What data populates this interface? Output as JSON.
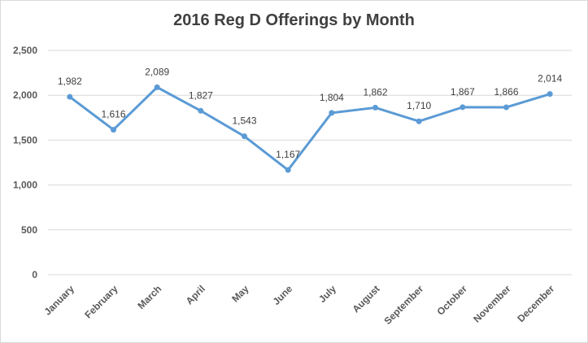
{
  "chart_data": {
    "type": "line",
    "title": "2016 Reg D Offerings by Month",
    "xlabel": "",
    "ylabel": "",
    "categories": [
      "January",
      "February",
      "March",
      "April",
      "May",
      "June",
      "July",
      "August",
      "September",
      "October",
      "November",
      "December"
    ],
    "values": [
      1982,
      1616,
      2089,
      1827,
      1543,
      1167,
      1804,
      1862,
      1710,
      1867,
      1866,
      2014
    ],
    "data_labels": [
      "1,982",
      "1,616",
      "2,089",
      "1,827",
      "1,543",
      "1,167",
      "1,804",
      "1,862",
      "1,710",
      "1,867",
      "1,866",
      "2,014"
    ],
    "ylim": [
      0,
      2500
    ],
    "yticks": [
      0,
      500,
      1000,
      1500,
      2000,
      2500
    ],
    "ytick_labels": [
      "0",
      "500",
      "1,000",
      "1,500",
      "2,000",
      "2,500"
    ],
    "grid": true,
    "legend": "none",
    "colors": {
      "line": "#5b9bd5",
      "grid": "#d9d9d9",
      "text": "#595959"
    }
  }
}
